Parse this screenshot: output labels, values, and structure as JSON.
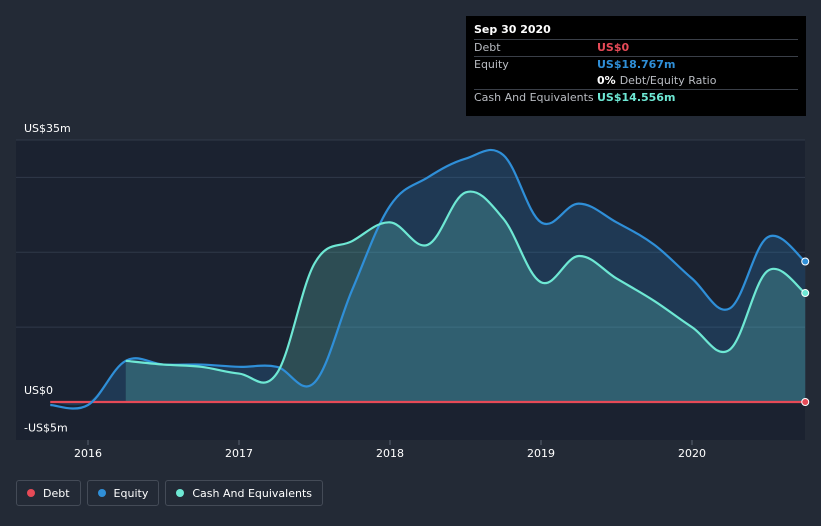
{
  "tooltip": {
    "date": "Sep 30 2020",
    "debt_label": "Debt",
    "debt_value": "US$0",
    "equity_label": "Equity",
    "equity_value": "US$18.767m",
    "ratio_pct": "0%",
    "ratio_label": "Debt/Equity Ratio",
    "cash_label": "Cash And Equivalents",
    "cash_value": "US$14.556m"
  },
  "legend": {
    "debt": "Debt",
    "equity": "Equity",
    "cash": "Cash And Equivalents"
  },
  "colors": {
    "debt": "#e64a57",
    "equity": "#2f8fd8",
    "cash": "#6ee8d4",
    "background": "#232a36",
    "plot_background": "#1b2230"
  },
  "chart_data": {
    "type": "line",
    "title": "",
    "xlabel": "",
    "ylabel": "",
    "ylim": [
      -5,
      35
    ],
    "ytick_labels": [
      {
        "value": 35,
        "label": "US$35m"
      },
      {
        "value": 0,
        "label": "US$0"
      },
      {
        "value": -5,
        "label": "-US$5m"
      }
    ],
    "xlim": [
      2015.5,
      2020.75
    ],
    "xtick_labels": [
      "2016",
      "2017",
      "2018",
      "2019",
      "2020"
    ],
    "xtick_values": [
      2016,
      2017,
      2018,
      2019,
      2020
    ],
    "series": [
      {
        "name": "Debt",
        "key": "debt",
        "x": [
          2015.75,
          2020.75
        ],
        "values": [
          0,
          0
        ]
      },
      {
        "name": "Equity",
        "key": "equity",
        "x": [
          2015.75,
          2016.0,
          2016.25,
          2016.5,
          2016.75,
          2017.0,
          2017.25,
          2017.5,
          2017.75,
          2018.0,
          2018.25,
          2018.5,
          2018.75,
          2019.0,
          2019.25,
          2019.5,
          2019.75,
          2020.0,
          2020.25,
          2020.5,
          2020.75
        ],
        "values": [
          -0.4,
          -0.4,
          5.5,
          5.0,
          5.0,
          4.7,
          4.7,
          2.6,
          15.0,
          26.2,
          30.0,
          32.5,
          33.0,
          24.0,
          26.5,
          24.0,
          21.0,
          16.5,
          12.5,
          22.0,
          18.767
        ]
      },
      {
        "name": "Cash And Equivalents",
        "key": "cash",
        "x": [
          2016.25,
          2016.5,
          2016.75,
          2017.0,
          2017.25,
          2017.5,
          2017.75,
          2018.0,
          2018.25,
          2018.5,
          2018.75,
          2019.0,
          2019.25,
          2019.5,
          2019.75,
          2020.0,
          2020.25,
          2020.5,
          2020.75
        ],
        "values": [
          5.5,
          5.0,
          4.7,
          3.8,
          3.8,
          18.5,
          21.5,
          24.0,
          21.0,
          28.0,
          24.5,
          16.0,
          19.5,
          16.5,
          13.5,
          10.0,
          7.0,
          17.5,
          14.556
        ]
      }
    ]
  }
}
